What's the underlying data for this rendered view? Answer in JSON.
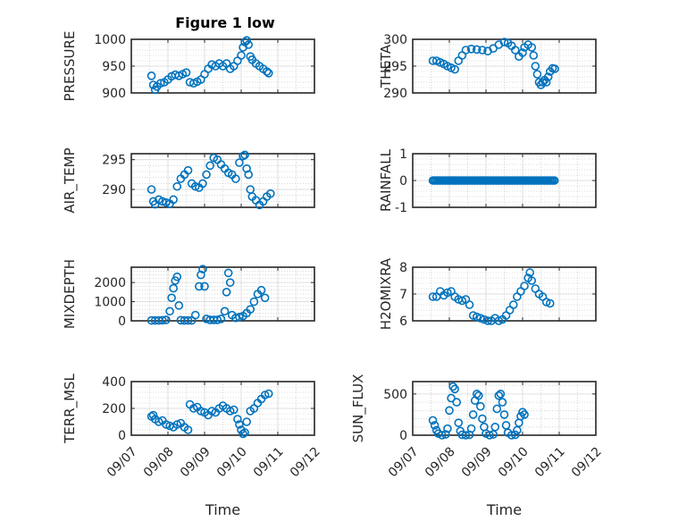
{
  "figure": {
    "title": "Figure 1 low"
  },
  "colors": {
    "marker": "#0072bd",
    "axis": "#262626",
    "grid": "#bdbdbd"
  },
  "chart_data": [
    {
      "type": "scatter",
      "id": "pressure",
      "title": "Figure 1 low",
      "ylabel": "PRESSURE",
      "xlabel": "",
      "xlim": [
        "09/07",
        "09/12"
      ],
      "ylim": [
        900,
        1000
      ],
      "yticks": [
        900,
        950,
        1000
      ],
      "xticks": [],
      "grid": true,
      "points": [
        {
          "x": 7.55,
          "y": 932
        },
        {
          "x": 7.6,
          "y": 915
        },
        {
          "x": 7.65,
          "y": 906
        },
        {
          "x": 7.7,
          "y": 912
        },
        {
          "x": 7.8,
          "y": 918
        },
        {
          "x": 7.9,
          "y": 920
        },
        {
          "x": 8.0,
          "y": 925
        },
        {
          "x": 8.1,
          "y": 931
        },
        {
          "x": 8.2,
          "y": 934
        },
        {
          "x": 8.3,
          "y": 932
        },
        {
          "x": 8.4,
          "y": 935
        },
        {
          "x": 8.5,
          "y": 938
        },
        {
          "x": 8.6,
          "y": 920
        },
        {
          "x": 8.7,
          "y": 918
        },
        {
          "x": 8.8,
          "y": 921
        },
        {
          "x": 8.9,
          "y": 925
        },
        {
          "x": 9.0,
          "y": 935
        },
        {
          "x": 9.1,
          "y": 945
        },
        {
          "x": 9.2,
          "y": 953
        },
        {
          "x": 9.3,
          "y": 950
        },
        {
          "x": 9.4,
          "y": 955
        },
        {
          "x": 9.5,
          "y": 950
        },
        {
          "x": 9.6,
          "y": 955
        },
        {
          "x": 9.7,
          "y": 945
        },
        {
          "x": 9.8,
          "y": 950
        },
        {
          "x": 9.9,
          "y": 960
        },
        {
          "x": 10.0,
          "y": 970
        },
        {
          "x": 10.05,
          "y": 985
        },
        {
          "x": 10.1,
          "y": 995
        },
        {
          "x": 10.15,
          "y": 998
        },
        {
          "x": 10.2,
          "y": 990
        },
        {
          "x": 10.25,
          "y": 968
        },
        {
          "x": 10.3,
          "y": 962
        },
        {
          "x": 10.4,
          "y": 955
        },
        {
          "x": 10.5,
          "y": 950
        },
        {
          "x": 10.6,
          "y": 945
        },
        {
          "x": 10.7,
          "y": 940
        },
        {
          "x": 10.75,
          "y": 937
        }
      ]
    },
    {
      "type": "scatter",
      "id": "theta",
      "ylabel": "THETA",
      "xlabel": "",
      "xlim": [
        "09/07",
        "09/12"
      ],
      "ylim": [
        290,
        300
      ],
      "yticks": [
        290,
        295,
        300
      ],
      "xticks": [],
      "grid": true,
      "points": [
        {
          "x": 7.55,
          "y": 296
        },
        {
          "x": 7.65,
          "y": 296
        },
        {
          "x": 7.75,
          "y": 295.7
        },
        {
          "x": 7.85,
          "y": 295.4
        },
        {
          "x": 7.95,
          "y": 295
        },
        {
          "x": 8.05,
          "y": 294.7
        },
        {
          "x": 8.15,
          "y": 294.4
        },
        {
          "x": 8.25,
          "y": 296
        },
        {
          "x": 8.35,
          "y": 297
        },
        {
          "x": 8.45,
          "y": 298
        },
        {
          "x": 8.6,
          "y": 298.2
        },
        {
          "x": 8.75,
          "y": 298.1
        },
        {
          "x": 8.9,
          "y": 298
        },
        {
          "x": 9.05,
          "y": 297.8
        },
        {
          "x": 9.2,
          "y": 298.3
        },
        {
          "x": 9.35,
          "y": 299
        },
        {
          "x": 9.5,
          "y": 299.5
        },
        {
          "x": 9.6,
          "y": 299.3
        },
        {
          "x": 9.7,
          "y": 298.8
        },
        {
          "x": 9.8,
          "y": 298
        },
        {
          "x": 9.9,
          "y": 296.8
        },
        {
          "x": 10.0,
          "y": 297.5
        },
        {
          "x": 10.05,
          "y": 298.5
        },
        {
          "x": 10.15,
          "y": 299
        },
        {
          "x": 10.25,
          "y": 298.5
        },
        {
          "x": 10.3,
          "y": 297
        },
        {
          "x": 10.35,
          "y": 295
        },
        {
          "x": 10.4,
          "y": 293.5
        },
        {
          "x": 10.45,
          "y": 292
        },
        {
          "x": 10.5,
          "y": 291.5
        },
        {
          "x": 10.55,
          "y": 292
        },
        {
          "x": 10.6,
          "y": 292.4
        },
        {
          "x": 10.65,
          "y": 292
        },
        {
          "x": 10.7,
          "y": 293
        },
        {
          "x": 10.75,
          "y": 294
        },
        {
          "x": 10.82,
          "y": 294.6
        },
        {
          "x": 10.88,
          "y": 294.5
        }
      ]
    },
    {
      "type": "scatter",
      "id": "air_temp",
      "ylabel": "AIR_TEMP",
      "xlabel": "",
      "xlim": [
        "09/07",
        "09/12"
      ],
      "ylim": [
        287,
        296
      ],
      "yticks": [
        290,
        295
      ],
      "xticks": [],
      "grid": true,
      "points": [
        {
          "x": 7.55,
          "y": 290
        },
        {
          "x": 7.6,
          "y": 288
        },
        {
          "x": 7.65,
          "y": 287.5
        },
        {
          "x": 7.75,
          "y": 288.3
        },
        {
          "x": 7.85,
          "y": 288
        },
        {
          "x": 7.95,
          "y": 287.8
        },
        {
          "x": 8.05,
          "y": 287.6
        },
        {
          "x": 8.15,
          "y": 288.3
        },
        {
          "x": 8.25,
          "y": 290.5
        },
        {
          "x": 8.35,
          "y": 291.8
        },
        {
          "x": 8.45,
          "y": 292.5
        },
        {
          "x": 8.55,
          "y": 293.2
        },
        {
          "x": 8.65,
          "y": 291
        },
        {
          "x": 8.75,
          "y": 290.5
        },
        {
          "x": 8.85,
          "y": 290.3
        },
        {
          "x": 8.95,
          "y": 291
        },
        {
          "x": 9.05,
          "y": 292.5
        },
        {
          "x": 9.15,
          "y": 294
        },
        {
          "x": 9.25,
          "y": 295.3
        },
        {
          "x": 9.35,
          "y": 295
        },
        {
          "x": 9.45,
          "y": 294.2
        },
        {
          "x": 9.55,
          "y": 293.5
        },
        {
          "x": 9.65,
          "y": 292.8
        },
        {
          "x": 9.75,
          "y": 292.5
        },
        {
          "x": 9.85,
          "y": 291.8
        },
        {
          "x": 9.95,
          "y": 294.5
        },
        {
          "x": 10.05,
          "y": 295.6
        },
        {
          "x": 10.1,
          "y": 295.8
        },
        {
          "x": 10.15,
          "y": 293.5
        },
        {
          "x": 10.2,
          "y": 292.5
        },
        {
          "x": 10.25,
          "y": 290
        },
        {
          "x": 10.3,
          "y": 288.8
        },
        {
          "x": 10.4,
          "y": 288.2
        },
        {
          "x": 10.5,
          "y": 287.4
        },
        {
          "x": 10.6,
          "y": 288
        },
        {
          "x": 10.7,
          "y": 288.8
        },
        {
          "x": 10.8,
          "y": 289.3
        }
      ]
    },
    {
      "type": "scatter",
      "id": "rainfall",
      "ylabel": "RAINFALL",
      "xlabel": "",
      "xlim": [
        "09/07",
        "09/12"
      ],
      "ylim": [
        -1,
        1
      ],
      "yticks": [
        -1,
        0,
        1
      ],
      "xticks": [],
      "grid": true,
      "points_constant": {
        "x_start": 7.55,
        "x_end": 10.88,
        "step": 0.04,
        "y": 0
      }
    },
    {
      "type": "scatter",
      "id": "mixdepth",
      "ylabel": "MIXDEPTH",
      "xlabel": "",
      "xlim": [
        "09/07",
        "09/12"
      ],
      "ylim": [
        0,
        2800
      ],
      "yticks": [
        0,
        1000,
        2000
      ],
      "xticks": [],
      "grid": true,
      "points": [
        {
          "x": 7.55,
          "y": 20
        },
        {
          "x": 7.65,
          "y": 20
        },
        {
          "x": 7.75,
          "y": 20
        },
        {
          "x": 7.85,
          "y": 30
        },
        {
          "x": 7.95,
          "y": 50
        },
        {
          "x": 8.05,
          "y": 500
        },
        {
          "x": 8.1,
          "y": 1200
        },
        {
          "x": 8.15,
          "y": 1700
        },
        {
          "x": 8.2,
          "y": 2100
        },
        {
          "x": 8.25,
          "y": 2300
        },
        {
          "x": 8.3,
          "y": 800
        },
        {
          "x": 8.35,
          "y": 30
        },
        {
          "x": 8.45,
          "y": 20
        },
        {
          "x": 8.55,
          "y": 20
        },
        {
          "x": 8.65,
          "y": 20
        },
        {
          "x": 8.75,
          "y": 300
        },
        {
          "x": 8.85,
          "y": 1800
        },
        {
          "x": 8.9,
          "y": 2400
        },
        {
          "x": 8.95,
          "y": 2700
        },
        {
          "x": 9.0,
          "y": 1800
        },
        {
          "x": 9.05,
          "y": 100
        },
        {
          "x": 9.15,
          "y": 50
        },
        {
          "x": 9.25,
          "y": 50
        },
        {
          "x": 9.35,
          "y": 50
        },
        {
          "x": 9.45,
          "y": 100
        },
        {
          "x": 9.55,
          "y": 500
        },
        {
          "x": 9.6,
          "y": 1500
        },
        {
          "x": 9.65,
          "y": 2500
        },
        {
          "x": 9.7,
          "y": 2000
        },
        {
          "x": 9.75,
          "y": 300
        },
        {
          "x": 9.85,
          "y": 150
        },
        {
          "x": 9.95,
          "y": 200
        },
        {
          "x": 10.05,
          "y": 250
        },
        {
          "x": 10.15,
          "y": 400
        },
        {
          "x": 10.25,
          "y": 600
        },
        {
          "x": 10.35,
          "y": 1000
        },
        {
          "x": 10.45,
          "y": 1400
        },
        {
          "x": 10.55,
          "y": 1600
        },
        {
          "x": 10.65,
          "y": 1200
        }
      ]
    },
    {
      "type": "scatter",
      "id": "h2omixra",
      "ylabel": "H2OMIXRA",
      "xlabel": "",
      "xlim": [
        "09/07",
        "09/12"
      ],
      "ylim": [
        6,
        8
      ],
      "yticks": [
        6,
        7,
        8
      ],
      "xticks": [],
      "grid": true,
      "points": [
        {
          "x": 7.55,
          "y": 6.9
        },
        {
          "x": 7.65,
          "y": 6.9
        },
        {
          "x": 7.75,
          "y": 7.1
        },
        {
          "x": 7.85,
          "y": 6.95
        },
        {
          "x": 7.95,
          "y": 7.05
        },
        {
          "x": 8.05,
          "y": 7.1
        },
        {
          "x": 8.15,
          "y": 6.9
        },
        {
          "x": 8.25,
          "y": 6.8
        },
        {
          "x": 8.35,
          "y": 6.75
        },
        {
          "x": 8.45,
          "y": 6.8
        },
        {
          "x": 8.55,
          "y": 6.6
        },
        {
          "x": 8.65,
          "y": 6.2
        },
        {
          "x": 8.75,
          "y": 6.15
        },
        {
          "x": 8.85,
          "y": 6.1
        },
        {
          "x": 8.95,
          "y": 6.05
        },
        {
          "x": 9.05,
          "y": 6.0
        },
        {
          "x": 9.15,
          "y": 6.0
        },
        {
          "x": 9.25,
          "y": 6.1
        },
        {
          "x": 9.35,
          "y": 6.0
        },
        {
          "x": 9.45,
          "y": 6.05
        },
        {
          "x": 9.55,
          "y": 6.2
        },
        {
          "x": 9.65,
          "y": 6.4
        },
        {
          "x": 9.75,
          "y": 6.6
        },
        {
          "x": 9.85,
          "y": 6.9
        },
        {
          "x": 9.95,
          "y": 7.1
        },
        {
          "x": 10.05,
          "y": 7.3
        },
        {
          "x": 10.15,
          "y": 7.6
        },
        {
          "x": 10.2,
          "y": 7.8
        },
        {
          "x": 10.25,
          "y": 7.5
        },
        {
          "x": 10.35,
          "y": 7.2
        },
        {
          "x": 10.45,
          "y": 7.0
        },
        {
          "x": 10.55,
          "y": 6.9
        },
        {
          "x": 10.65,
          "y": 6.7
        },
        {
          "x": 10.75,
          "y": 6.65
        }
      ]
    },
    {
      "type": "scatter",
      "id": "terr_msl",
      "ylabel": "TERR_MSL",
      "xlabel": "Time",
      "xlim": [
        "09/07",
        "09/12"
      ],
      "ylim": [
        0,
        400
      ],
      "yticks": [
        0,
        200,
        400
      ],
      "xticks": [
        "09/07",
        "09/08",
        "09/09",
        "09/10",
        "09/11",
        "09/12"
      ],
      "grid": true,
      "points": [
        {
          "x": 7.55,
          "y": 140
        },
        {
          "x": 7.6,
          "y": 150
        },
        {
          "x": 7.65,
          "y": 120
        },
        {
          "x": 7.75,
          "y": 100
        },
        {
          "x": 7.85,
          "y": 110
        },
        {
          "x": 7.95,
          "y": 80
        },
        {
          "x": 8.05,
          "y": 70
        },
        {
          "x": 8.15,
          "y": 60
        },
        {
          "x": 8.25,
          "y": 80
        },
        {
          "x": 8.35,
          "y": 90
        },
        {
          "x": 8.45,
          "y": 60
        },
        {
          "x": 8.55,
          "y": 40
        },
        {
          "x": 8.6,
          "y": 230
        },
        {
          "x": 8.7,
          "y": 200
        },
        {
          "x": 8.8,
          "y": 210
        },
        {
          "x": 8.9,
          "y": 180
        },
        {
          "x": 9.0,
          "y": 170
        },
        {
          "x": 9.1,
          "y": 150
        },
        {
          "x": 9.2,
          "y": 180
        },
        {
          "x": 9.3,
          "y": 170
        },
        {
          "x": 9.4,
          "y": 200
        },
        {
          "x": 9.5,
          "y": 220
        },
        {
          "x": 9.6,
          "y": 200
        },
        {
          "x": 9.7,
          "y": 180
        },
        {
          "x": 9.8,
          "y": 190
        },
        {
          "x": 9.9,
          "y": 120
        },
        {
          "x": 9.95,
          "y": 80
        },
        {
          "x": 10.0,
          "y": 40
        },
        {
          "x": 10.05,
          "y": 10
        },
        {
          "x": 10.1,
          "y": 20
        },
        {
          "x": 10.15,
          "y": 100
        },
        {
          "x": 10.25,
          "y": 180
        },
        {
          "x": 10.35,
          "y": 200
        },
        {
          "x": 10.45,
          "y": 240
        },
        {
          "x": 10.55,
          "y": 270
        },
        {
          "x": 10.65,
          "y": 300
        },
        {
          "x": 10.75,
          "y": 310
        }
      ]
    },
    {
      "type": "scatter",
      "id": "sun_flux",
      "ylabel": "SUN_FLUX",
      "xlabel": "Time",
      "xlim": [
        "09/07",
        "09/12"
      ],
      "ylim": [
        0,
        650
      ],
      "yticks": [
        0,
        500
      ],
      "xticks": [
        "09/07",
        "09/08",
        "09/09",
        "09/10",
        "09/11",
        "09/12"
      ],
      "grid": true,
      "points": [
        {
          "x": 7.55,
          "y": 180
        },
        {
          "x": 7.6,
          "y": 120
        },
        {
          "x": 7.65,
          "y": 60
        },
        {
          "x": 7.7,
          "y": 20
        },
        {
          "x": 7.8,
          "y": 0
        },
        {
          "x": 7.9,
          "y": 10
        },
        {
          "x": 7.95,
          "y": 80
        },
        {
          "x": 8.0,
          "y": 300
        },
        {
          "x": 8.05,
          "y": 450
        },
        {
          "x": 8.1,
          "y": 590
        },
        {
          "x": 8.15,
          "y": 560
        },
        {
          "x": 8.2,
          "y": 400
        },
        {
          "x": 8.25,
          "y": 150
        },
        {
          "x": 8.3,
          "y": 50
        },
        {
          "x": 8.35,
          "y": 5
        },
        {
          "x": 8.45,
          "y": 0
        },
        {
          "x": 8.55,
          "y": 5
        },
        {
          "x": 8.6,
          "y": 80
        },
        {
          "x": 8.65,
          "y": 250
        },
        {
          "x": 8.7,
          "y": 420
        },
        {
          "x": 8.75,
          "y": 500
        },
        {
          "x": 8.8,
          "y": 480
        },
        {
          "x": 8.85,
          "y": 350
        },
        {
          "x": 8.9,
          "y": 200
        },
        {
          "x": 8.95,
          "y": 100
        },
        {
          "x": 9.0,
          "y": 20
        },
        {
          "x": 9.1,
          "y": 0
        },
        {
          "x": 9.2,
          "y": 10
        },
        {
          "x": 9.25,
          "y": 100
        },
        {
          "x": 9.3,
          "y": 320
        },
        {
          "x": 9.35,
          "y": 480
        },
        {
          "x": 9.4,
          "y": 500
        },
        {
          "x": 9.45,
          "y": 400
        },
        {
          "x": 9.5,
          "y": 250
        },
        {
          "x": 9.55,
          "y": 120
        },
        {
          "x": 9.6,
          "y": 30
        },
        {
          "x": 9.7,
          "y": 0
        },
        {
          "x": 9.8,
          "y": 5
        },
        {
          "x": 9.85,
          "y": 60
        },
        {
          "x": 9.9,
          "y": 150
        },
        {
          "x": 9.95,
          "y": 230
        },
        {
          "x": 10.0,
          "y": 280
        },
        {
          "x": 10.05,
          "y": 250
        }
      ]
    }
  ]
}
